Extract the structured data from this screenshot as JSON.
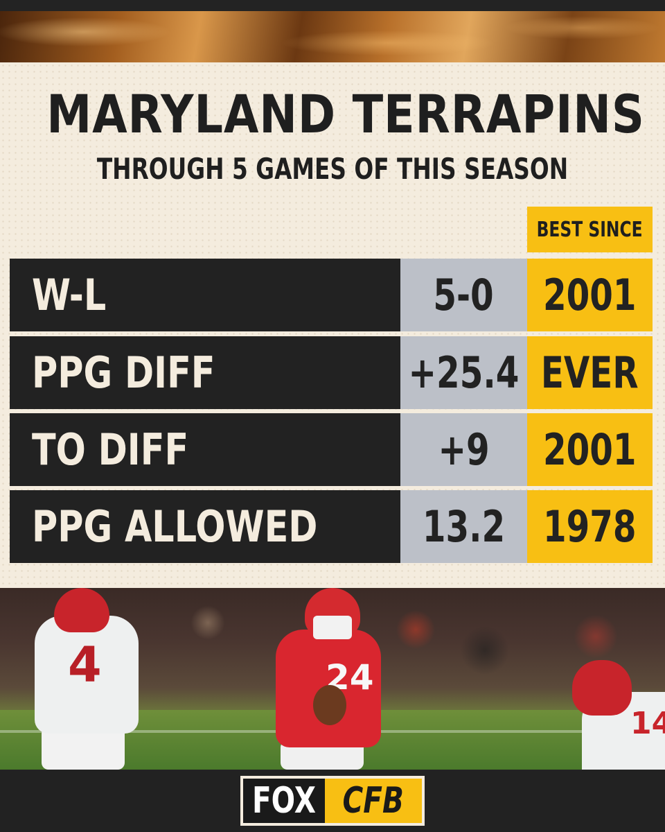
{
  "header": {
    "title": "MARYLAND TERRAPINS",
    "subtitle": "THROUGH 5 GAMES OF THIS SEASON"
  },
  "table": {
    "best_since_label": "BEST SINCE",
    "rows": [
      {
        "stat": "W-L",
        "value": "5-0",
        "best_since": "2001"
      },
      {
        "stat": "PPG DIFF",
        "value": "+25.4",
        "best_since": "EVER"
      },
      {
        "stat": "TO DIFF",
        "value": "+9",
        "best_since": "2001"
      },
      {
        "stat": "PPG ALLOWED",
        "value": "13.2",
        "best_since": "1978"
      }
    ]
  },
  "photo": {
    "player_numbers": [
      "4",
      "24",
      "14"
    ]
  },
  "logo": {
    "left_text": "FOX",
    "right_text": "CFB"
  },
  "colors": {
    "accent_yellow": "#f8bf13",
    "dark": "#222222",
    "value_gray": "#bcc0c8",
    "background_cream": "#f4ecde"
  }
}
